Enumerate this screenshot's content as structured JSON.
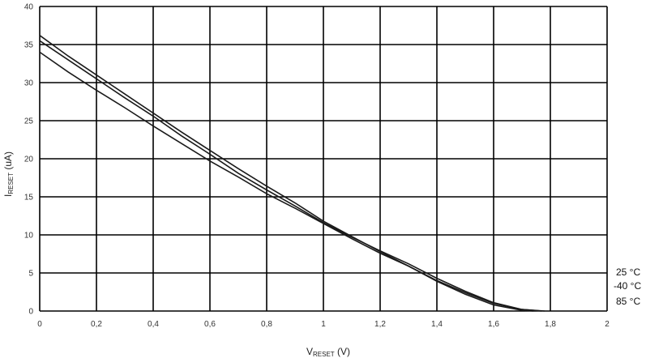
{
  "chart_data": {
    "type": "line",
    "title": "",
    "xlabel": {
      "main": "V",
      "sub": "RESET",
      "suffix": " (V)"
    },
    "ylabel": {
      "main": "I",
      "sub": "RESET",
      "suffix": " (uA)"
    },
    "xlim": [
      0,
      2
    ],
    "ylim": [
      0,
      40
    ],
    "x_ticks": [
      "0",
      "0,2",
      "0,4",
      "0,6",
      "0,8",
      "1",
      "1,2",
      "1,4",
      "1,6",
      "1,8",
      "2"
    ],
    "y_ticks": [
      "0",
      "5",
      "10",
      "15",
      "20",
      "25",
      "30",
      "35",
      "40"
    ],
    "grid": true,
    "legend_position": "right, beside the ends of the curves",
    "legend": [
      "25 °C",
      "-40 °C",
      "85 °C"
    ],
    "series": [
      {
        "name": "25 °C",
        "x": [
          0,
          0.1,
          0.2,
          0.3,
          0.4,
          0.5,
          0.6,
          0.7,
          0.8,
          0.9,
          1.0,
          1.1,
          1.2,
          1.3,
          1.4,
          1.5,
          1.6,
          1.7,
          1.77
        ],
        "y": [
          35.5,
          33.0,
          30.5,
          28.0,
          25.6,
          23.0,
          20.6,
          18.1,
          15.9,
          13.8,
          11.6,
          9.7,
          7.9,
          6.2,
          4.3,
          2.6,
          1.1,
          0.2,
          0
        ]
      },
      {
        "name": "-40 °C",
        "x": [
          0,
          0.1,
          0.2,
          0.3,
          0.4,
          0.5,
          0.6,
          0.7,
          0.8,
          0.9,
          1.0,
          1.1,
          1.2,
          1.3,
          1.4,
          1.5,
          1.6,
          1.7,
          1.74
        ],
        "y": [
          36.2,
          33.5,
          31.0,
          28.5,
          26.0,
          23.5,
          21.1,
          18.7,
          16.4,
          14.2,
          11.8,
          9.8,
          7.8,
          5.9,
          3.9,
          2.2,
          0.8,
          0.1,
          0
        ]
      },
      {
        "name": "85 °C",
        "x": [
          0,
          0.1,
          0.2,
          0.3,
          0.4,
          0.5,
          0.6,
          0.7,
          0.8,
          0.9,
          1.0,
          1.1,
          1.2,
          1.3,
          1.4,
          1.5,
          1.6,
          1.7,
          1.78
        ],
        "y": [
          34.0,
          31.4,
          29.0,
          26.7,
          24.3,
          22.0,
          19.7,
          17.6,
          15.4,
          13.5,
          11.5,
          9.5,
          7.6,
          5.9,
          4.0,
          2.4,
          1.0,
          0.2,
          0
        ]
      }
    ]
  }
}
